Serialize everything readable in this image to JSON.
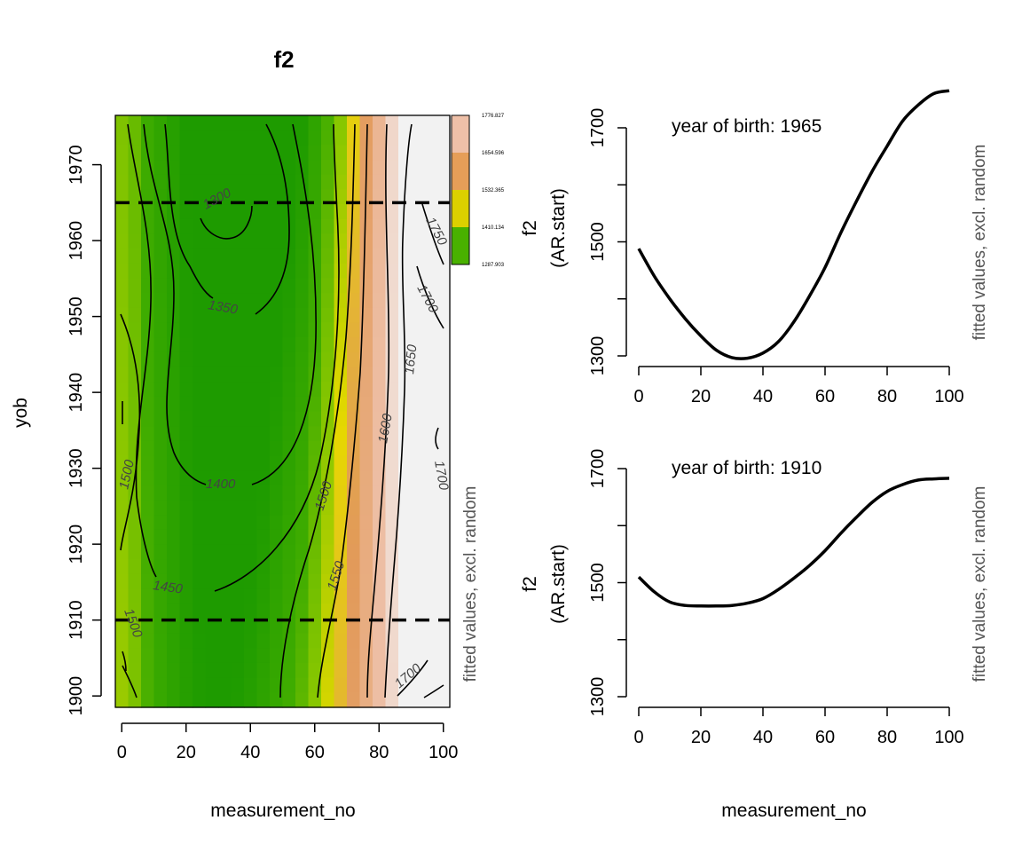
{
  "chart_data": [
    {
      "type": "heatmap",
      "title": "f2",
      "xlabel": "measurement_no",
      "ylabel": "yob",
      "side_label": "fitted values, excl. random",
      "xlim": [
        -2,
        102
      ],
      "ylim": [
        1898.5,
        1976.5
      ],
      "x_ticks": [
        "0",
        "20",
        "40",
        "60",
        "80",
        "100"
      ],
      "y_ticks": [
        "1900",
        "1910",
        "1920",
        "1930",
        "1940",
        "1950",
        "1960",
        "1970"
      ],
      "color_legend": [
        "1776.827",
        "1654.596",
        "1532.365",
        "1410.134",
        "1287.903"
      ],
      "colors": {
        "low": "#1e9b00",
        "mid": "#e6d800",
        "high": "#eec0a8",
        "top": "#f2f2f2"
      },
      "reference_lines_yob": [
        1965,
        1910
      ],
      "contour_labels": [
        "1300",
        "1350",
        "1400",
        "1450",
        "1500",
        "1500",
        "1500",
        "1550",
        "1600",
        "1650",
        "1700",
        "1700",
        "1700",
        "1750"
      ]
    },
    {
      "type": "line",
      "annotation": "year of birth: 1965",
      "xlabel": "",
      "ylabel": "f2",
      "ylabel2": "(AR.start)",
      "side_label": "fitted values, excl. random",
      "xlim": [
        0,
        100
      ],
      "ylim": [
        1300,
        1700
      ],
      "x_ticks": [
        "0",
        "20",
        "40",
        "60",
        "80",
        "100"
      ],
      "y_ticks": [
        "1300",
        "1500",
        "1700"
      ],
      "x": [
        0,
        5,
        10,
        15,
        20,
        25,
        30,
        35,
        40,
        45,
        50,
        55,
        60,
        65,
        70,
        75,
        80,
        85,
        90,
        95,
        100
      ],
      "y": [
        1488,
        1440,
        1400,
        1365,
        1335,
        1310,
        1297,
        1296,
        1305,
        1325,
        1360,
        1405,
        1455,
        1515,
        1570,
        1622,
        1668,
        1712,
        1740,
        1760,
        1765
      ]
    },
    {
      "type": "line",
      "annotation": "year of birth: 1910",
      "xlabel": "measurement_no",
      "ylabel": "f2",
      "ylabel2": "(AR.start)",
      "side_label": "fitted values, excl. random",
      "xlim": [
        0,
        100
      ],
      "ylim": [
        1300,
        1700
      ],
      "x_ticks": [
        "0",
        "20",
        "40",
        "60",
        "80",
        "100"
      ],
      "y_ticks": [
        "1300",
        "1500",
        "1700"
      ],
      "x": [
        0,
        5,
        10,
        15,
        20,
        25,
        30,
        35,
        40,
        45,
        50,
        55,
        60,
        65,
        70,
        75,
        80,
        85,
        90,
        95,
        100
      ],
      "y": [
        1510,
        1484,
        1466,
        1460,
        1459,
        1459,
        1460,
        1464,
        1472,
        1488,
        1508,
        1530,
        1556,
        1586,
        1614,
        1640,
        1660,
        1672,
        1680,
        1682,
        1683
      ]
    }
  ]
}
